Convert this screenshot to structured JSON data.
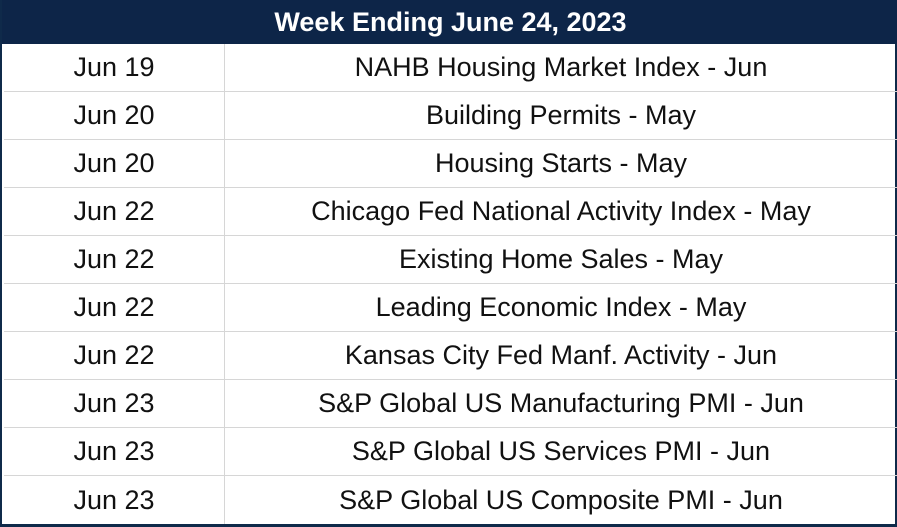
{
  "table": {
    "title": "Week Ending June 24, 2023",
    "rows": [
      {
        "date": "Jun 19",
        "event": "NAHB Housing Market Index - Jun"
      },
      {
        "date": "Jun 20",
        "event": "Building Permits - May"
      },
      {
        "date": "Jun 20",
        "event": "Housing Starts - May"
      },
      {
        "date": "Jun 22",
        "event": "Chicago Fed National Activity Index - May"
      },
      {
        "date": "Jun 22",
        "event": "Existing Home Sales - May"
      },
      {
        "date": "Jun 22",
        "event": "Leading Economic Index - May"
      },
      {
        "date": "Jun 22",
        "event": "Kansas City Fed Manf. Activity - Jun"
      },
      {
        "date": "Jun 23",
        "event": "S&P Global US Manufacturing PMI - Jun"
      },
      {
        "date": "Jun 23",
        "event": "S&P Global US Services PMI - Jun"
      },
      {
        "date": "Jun 23",
        "event": "S&P Global US Composite PMI - Jun"
      }
    ]
  },
  "colors": {
    "header_bg": "#0d2548",
    "header_text": "#ffffff",
    "grid_line": "#d6d6d6"
  }
}
